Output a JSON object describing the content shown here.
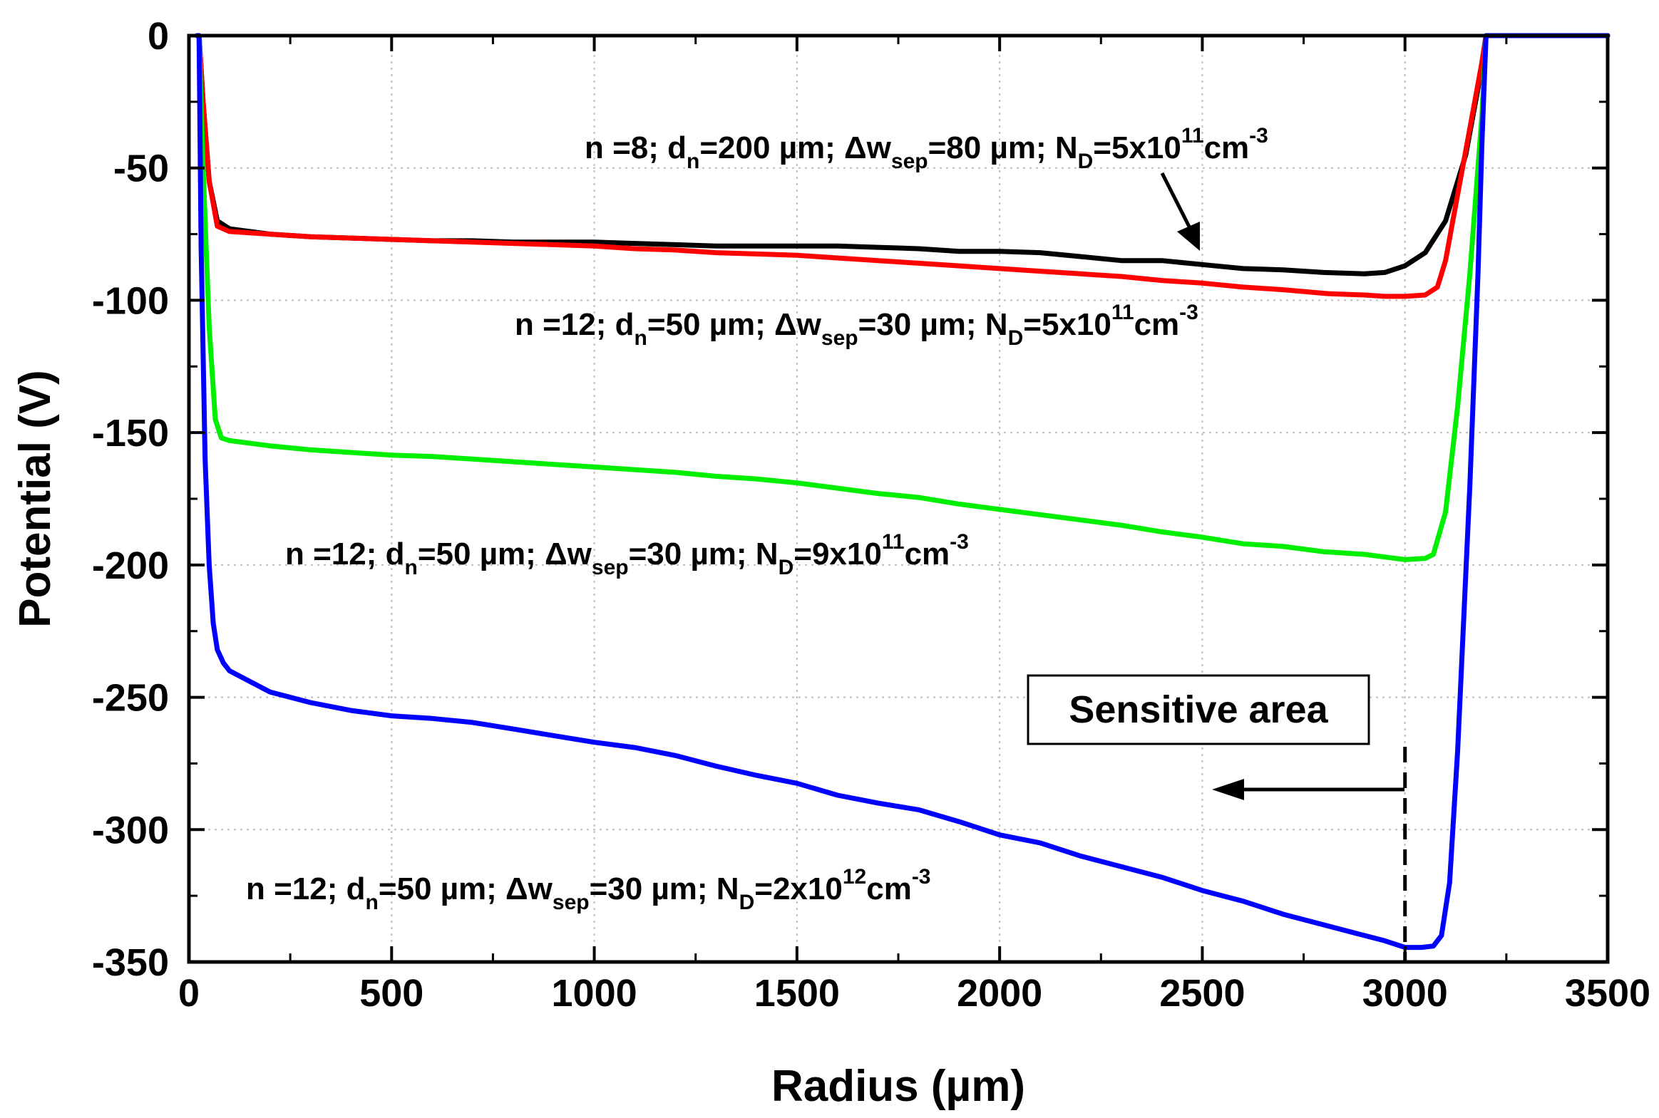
{
  "chart_data": {
    "type": "line",
    "title": "",
    "xlabel": "Radius (µm)",
    "ylabel": "Potential (V)",
    "xlim": [
      0,
      3500
    ],
    "ylim": [
      -350,
      0
    ],
    "xticks": [
      0,
      500,
      1000,
      1500,
      2000,
      2500,
      3000,
      3500
    ],
    "yticks": [
      0,
      -50,
      -100,
      -150,
      -200,
      -250,
      -300,
      -350
    ],
    "xtick_labels": [
      "0",
      "500",
      "1000",
      "1500",
      "2000",
      "2500",
      "3000",
      "3500"
    ],
    "ytick_labels": [
      "0",
      "-50",
      "-100",
      "-150",
      "-200",
      "-250",
      "-300",
      "-350"
    ],
    "grid": true,
    "series": [
      {
        "name": "n=8; dn=200 µm; Δwsep=80 µm; ND=5x10^11 cm^-3",
        "color": "#000000",
        "x": [
          20,
          25,
          35,
          50,
          70,
          100,
          200,
          300,
          400,
          500,
          600,
          700,
          800,
          900,
          1000,
          1100,
          1200,
          1300,
          1400,
          1500,
          1600,
          1700,
          1800,
          1900,
          2000,
          2100,
          2200,
          2300,
          2400,
          2500,
          2600,
          2700,
          2800,
          2900,
          2950,
          3000,
          3050,
          3100,
          3150,
          3180,
          3200,
          3210,
          3300,
          3400,
          3500
        ],
        "y": [
          0,
          0,
          -25,
          -55,
          -70,
          -73,
          -75,
          -76,
          -76.5,
          -77,
          -77.5,
          -77.5,
          -78,
          -78,
          -78,
          -78.5,
          -79,
          -79.5,
          -79.5,
          -79.5,
          -79.5,
          -80,
          -80.5,
          -81.5,
          -81.5,
          -82,
          -83.5,
          -85,
          -85,
          -86.5,
          -88,
          -88.5,
          -89.5,
          -90,
          -89.5,
          -87,
          -82,
          -70,
          -45,
          -20,
          0,
          0,
          0,
          0,
          0
        ]
      },
      {
        "name": "n=12; dn=50 µm; Δwsep=30 µm; ND=5x10^11 cm^-3",
        "color": "#ff0000",
        "x": [
          20,
          25,
          35,
          50,
          70,
          100,
          200,
          300,
          400,
          500,
          600,
          700,
          800,
          900,
          1000,
          1100,
          1200,
          1300,
          1400,
          1500,
          1600,
          1700,
          1800,
          1900,
          2000,
          2100,
          2200,
          2300,
          2400,
          2500,
          2600,
          2700,
          2810,
          2900,
          2950,
          3000,
          3050,
          3080,
          3100,
          3130,
          3160,
          3190,
          3200,
          3210,
          3300,
          3400,
          3500
        ],
        "y": [
          0,
          0,
          -25,
          -55,
          -72,
          -74,
          -75,
          -76,
          -76.5,
          -77,
          -77.5,
          -78,
          -78.5,
          -79,
          -79.5,
          -80.5,
          -81,
          -82,
          -82.5,
          -83,
          -84,
          -85,
          -86,
          -87,
          -88,
          -89,
          -90,
          -91,
          -92.5,
          -93.5,
          -95,
          -96,
          -97.5,
          -98,
          -98.5,
          -98.5,
          -98,
          -95,
          -85,
          -60,
          -35,
          -10,
          0,
          0,
          0,
          0,
          0
        ]
      },
      {
        "name": "n=12; dn=50 µm; Δwsep=30 µm; ND=9x10^11 cm^-3",
        "color": "#00ee00",
        "x": [
          20,
          25,
          35,
          50,
          65,
          80,
          100,
          200,
          300,
          400,
          500,
          600,
          700,
          800,
          900,
          1000,
          1100,
          1200,
          1300,
          1400,
          1500,
          1600,
          1700,
          1800,
          1900,
          2000,
          2100,
          2200,
          2300,
          2400,
          2500,
          2600,
          2700,
          2800,
          2900,
          2950,
          3000,
          3050,
          3070,
          3100,
          3130,
          3160,
          3190,
          3200,
          3210,
          3300,
          3400,
          3500
        ],
        "y": [
          0,
          0,
          -50,
          -110,
          -145,
          -152,
          -153,
          -155,
          -156.5,
          -157.5,
          -158.5,
          -159,
          -160,
          -161,
          -162,
          -163,
          -164,
          -165,
          -166.5,
          -167.5,
          -169,
          -171,
          -173,
          -174.5,
          -177,
          -179,
          -181,
          -183,
          -185,
          -187.5,
          -189.5,
          -192,
          -193,
          -195,
          -196,
          -197,
          -198,
          -197.5,
          -196,
          -180,
          -140,
          -90,
          -30,
          0,
          0,
          0,
          0,
          0
        ]
      },
      {
        "name": "n=12; dn=50 µm; Δwsep=30 µm; ND=2x10^12 cm^-3",
        "color": "#0000ff",
        "x": [
          20,
          25,
          30,
          40,
          50,
          60,
          70,
          85,
          100,
          200,
          300,
          400,
          500,
          600,
          700,
          800,
          900,
          1000,
          1100,
          1200,
          1300,
          1400,
          1500,
          1600,
          1700,
          1800,
          1900,
          2000,
          2100,
          2200,
          2300,
          2400,
          2500,
          2600,
          2700,
          2800,
          2900,
          2950,
          3000,
          3040,
          3070,
          3090,
          3110,
          3130,
          3160,
          3180,
          3190,
          3200,
          3210,
          3300,
          3400,
          3500
        ],
        "y": [
          0,
          0,
          -80,
          -160,
          -200,
          -222,
          -232,
          -237,
          -240,
          -248,
          -252,
          -255,
          -257,
          -258,
          -259.5,
          -262,
          -264.5,
          -267,
          -269,
          -272,
          -276,
          -279.5,
          -282.5,
          -287,
          -290,
          -292.5,
          -297,
          -302,
          -305,
          -310,
          -314,
          -318,
          -323,
          -327,
          -332,
          -336,
          -340,
          -342,
          -344.5,
          -344.5,
          -344,
          -340,
          -320,
          -270,
          -170,
          -90,
          -40,
          0,
          0,
          0,
          0,
          0
        ]
      }
    ],
    "annotations": [
      {
        "id": "black",
        "parts": [
          "n =8; d",
          "n",
          "=200 µm; Δw",
          "sep",
          "=80 µm; N",
          "D",
          "=5x10",
          "11",
          "cm",
          "-3"
        ]
      },
      {
        "id": "red",
        "parts": [
          "n =12; d",
          "n",
          "=50 µm; Δw",
          "sep",
          "=30 µm; N",
          "D",
          "=5x10",
          "11",
          "cm",
          "-3"
        ]
      },
      {
        "id": "green",
        "parts": [
          "n =12; d",
          "n",
          "=50 µm; Δw",
          "sep",
          "=30 µm; N",
          "D",
          "=9x10",
          "11",
          "cm",
          "-3"
        ]
      },
      {
        "id": "blue",
        "parts": [
          "n =12; d",
          "n",
          "=50 µm; Δw",
          "sep",
          "=30 µm; N",
          "D",
          "=2x10",
          "12",
          "cm",
          "-3"
        ]
      }
    ],
    "sensitive_area_label": "Sensitive area",
    "sensitive_area_boundary_x": 3000
  }
}
